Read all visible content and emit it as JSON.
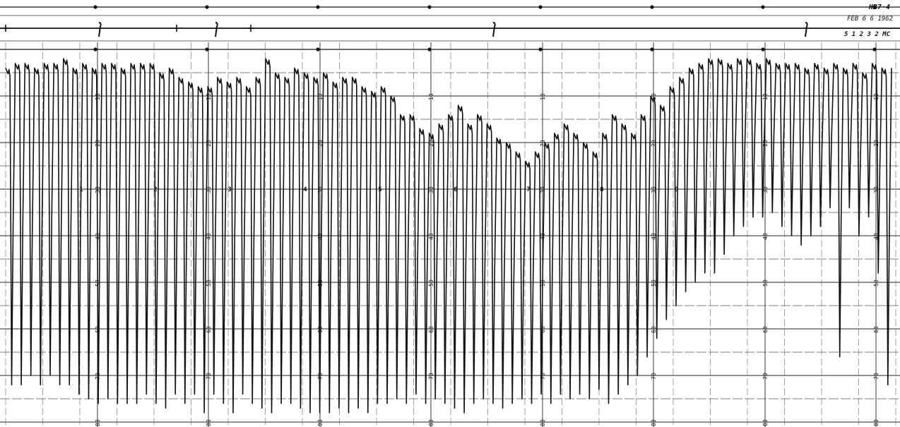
{
  "chart_data": {
    "type": "line",
    "title": "",
    "xlabel": "",
    "ylabel": "",
    "annotations": [
      "HB7·4",
      "FEB 6 6 1962",
      "5 1 2 3 2 MC"
    ],
    "scale_labels": [
      "0",
      "10",
      "20",
      "30",
      "40",
      "50",
      "60",
      "70",
      "80"
    ],
    "hour_labels": [
      "1",
      "2",
      "3",
      "4",
      "5",
      "6",
      "7",
      "8",
      "9"
    ],
    "ylim": [
      0,
      80
    ],
    "grid": true,
    "series": [
      {
        "peaks": [
          4,
          3,
          3,
          4,
          3,
          3,
          2,
          4,
          3,
          4,
          3,
          3,
          4,
          3,
          3,
          3,
          5,
          4,
          6,
          7,
          8,
          8,
          6,
          7,
          6,
          8,
          6,
          2,
          5,
          6,
          4,
          5,
          6,
          5,
          7,
          6,
          6,
          8,
          9,
          8,
          10,
          14,
          14,
          17,
          18,
          16,
          14,
          12,
          16,
          14,
          16,
          19,
          20,
          22,
          24,
          22,
          20,
          18,
          16,
          18,
          20,
          22,
          18,
          14,
          16,
          18,
          14,
          10,
          12,
          8,
          6,
          4,
          3,
          2,
          2,
          3,
          2,
          2,
          3,
          2,
          3,
          3,
          3,
          4,
          3,
          4,
          3,
          4,
          3,
          5,
          3,
          4
        ],
        "troughs": [
          72,
          72,
          70,
          72,
          70,
          72,
          72,
          74,
          75,
          76,
          75,
          76,
          76,
          76,
          74,
          76,
          77,
          74,
          76,
          74,
          78,
          74,
          76,
          78,
          74,
          76,
          77,
          78,
          76,
          76,
          77,
          78,
          78,
          78,
          77,
          78,
          77,
          78,
          76,
          76,
          75,
          76,
          74,
          76,
          75,
          76,
          77,
          78,
          76,
          75,
          76,
          77,
          76,
          75,
          76,
          74,
          76,
          74,
          75,
          74,
          75,
          73,
          76,
          74,
          72,
          70,
          66,
          62,
          58,
          55,
          52,
          50,
          48,
          48,
          44,
          40,
          38,
          36,
          36,
          35,
          38,
          40,
          42,
          40,
          38,
          34,
          66,
          34,
          40,
          36,
          48,
          72
        ]
      }
    ]
  }
}
